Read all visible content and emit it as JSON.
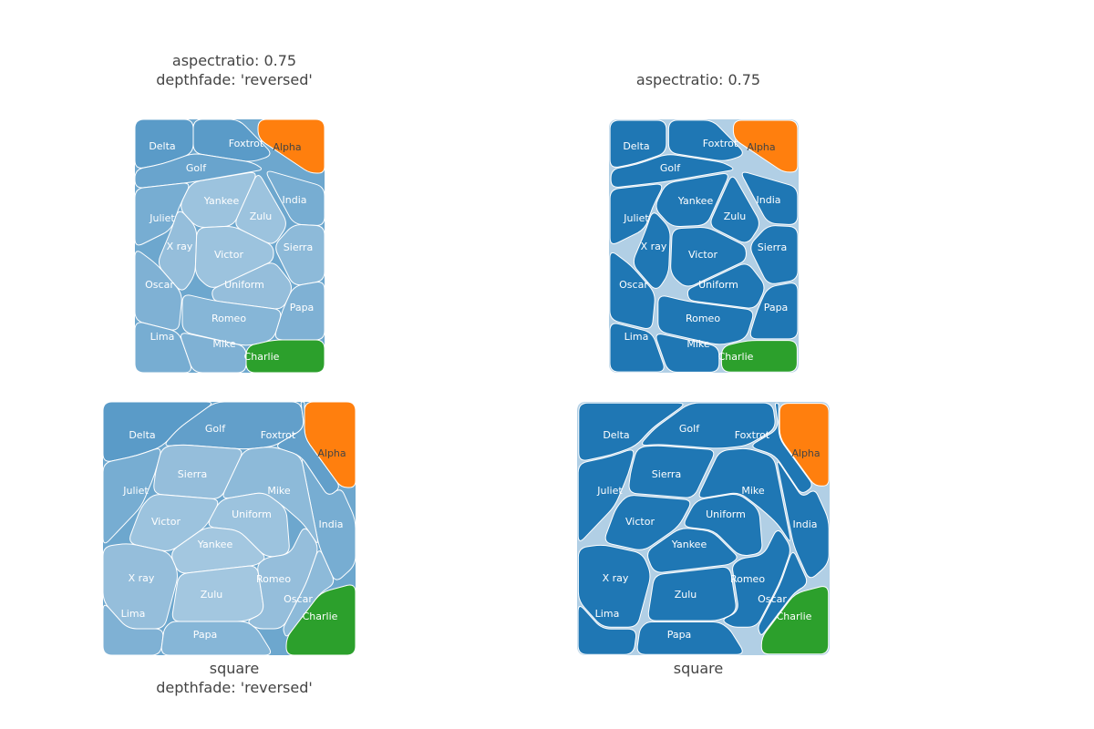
{
  "colors": {
    "blue": "#1f77b4",
    "orange": "#ff7f0e",
    "green": "#2ca02c",
    "background": "#ffffff",
    "text": "#444444",
    "label": "#ffffff"
  },
  "panels": [
    {
      "id": "tl",
      "title_lines": [
        "aspectratio: 0.75",
        "depthfade: 'reversed'"
      ],
      "depthfade": "reversed"
    },
    {
      "id": "tr",
      "title_lines": [
        "aspectratio: 0.75"
      ],
      "depthfade": "default"
    },
    {
      "id": "bl",
      "title_lines": [
        "square",
        "depthfade: 'reversed'"
      ],
      "depthfade": "reversed"
    },
    {
      "id": "br",
      "title_lines": [
        "square"
      ],
      "depthfade": "default"
    }
  ],
  "hierarchy": {
    "root_children": [
      "Alpha",
      "Charlie",
      "Blue group"
    ],
    "blue_group": [
      "Delta",
      "Foxtrot",
      "Golf",
      "India",
      "Juliet",
      "Lima",
      "Mike",
      "Oscar",
      "Papa",
      "Romeo",
      "Sierra",
      "Uniform",
      "Victor",
      "X ray",
      "Yankee",
      "Zulu"
    ]
  }
}
